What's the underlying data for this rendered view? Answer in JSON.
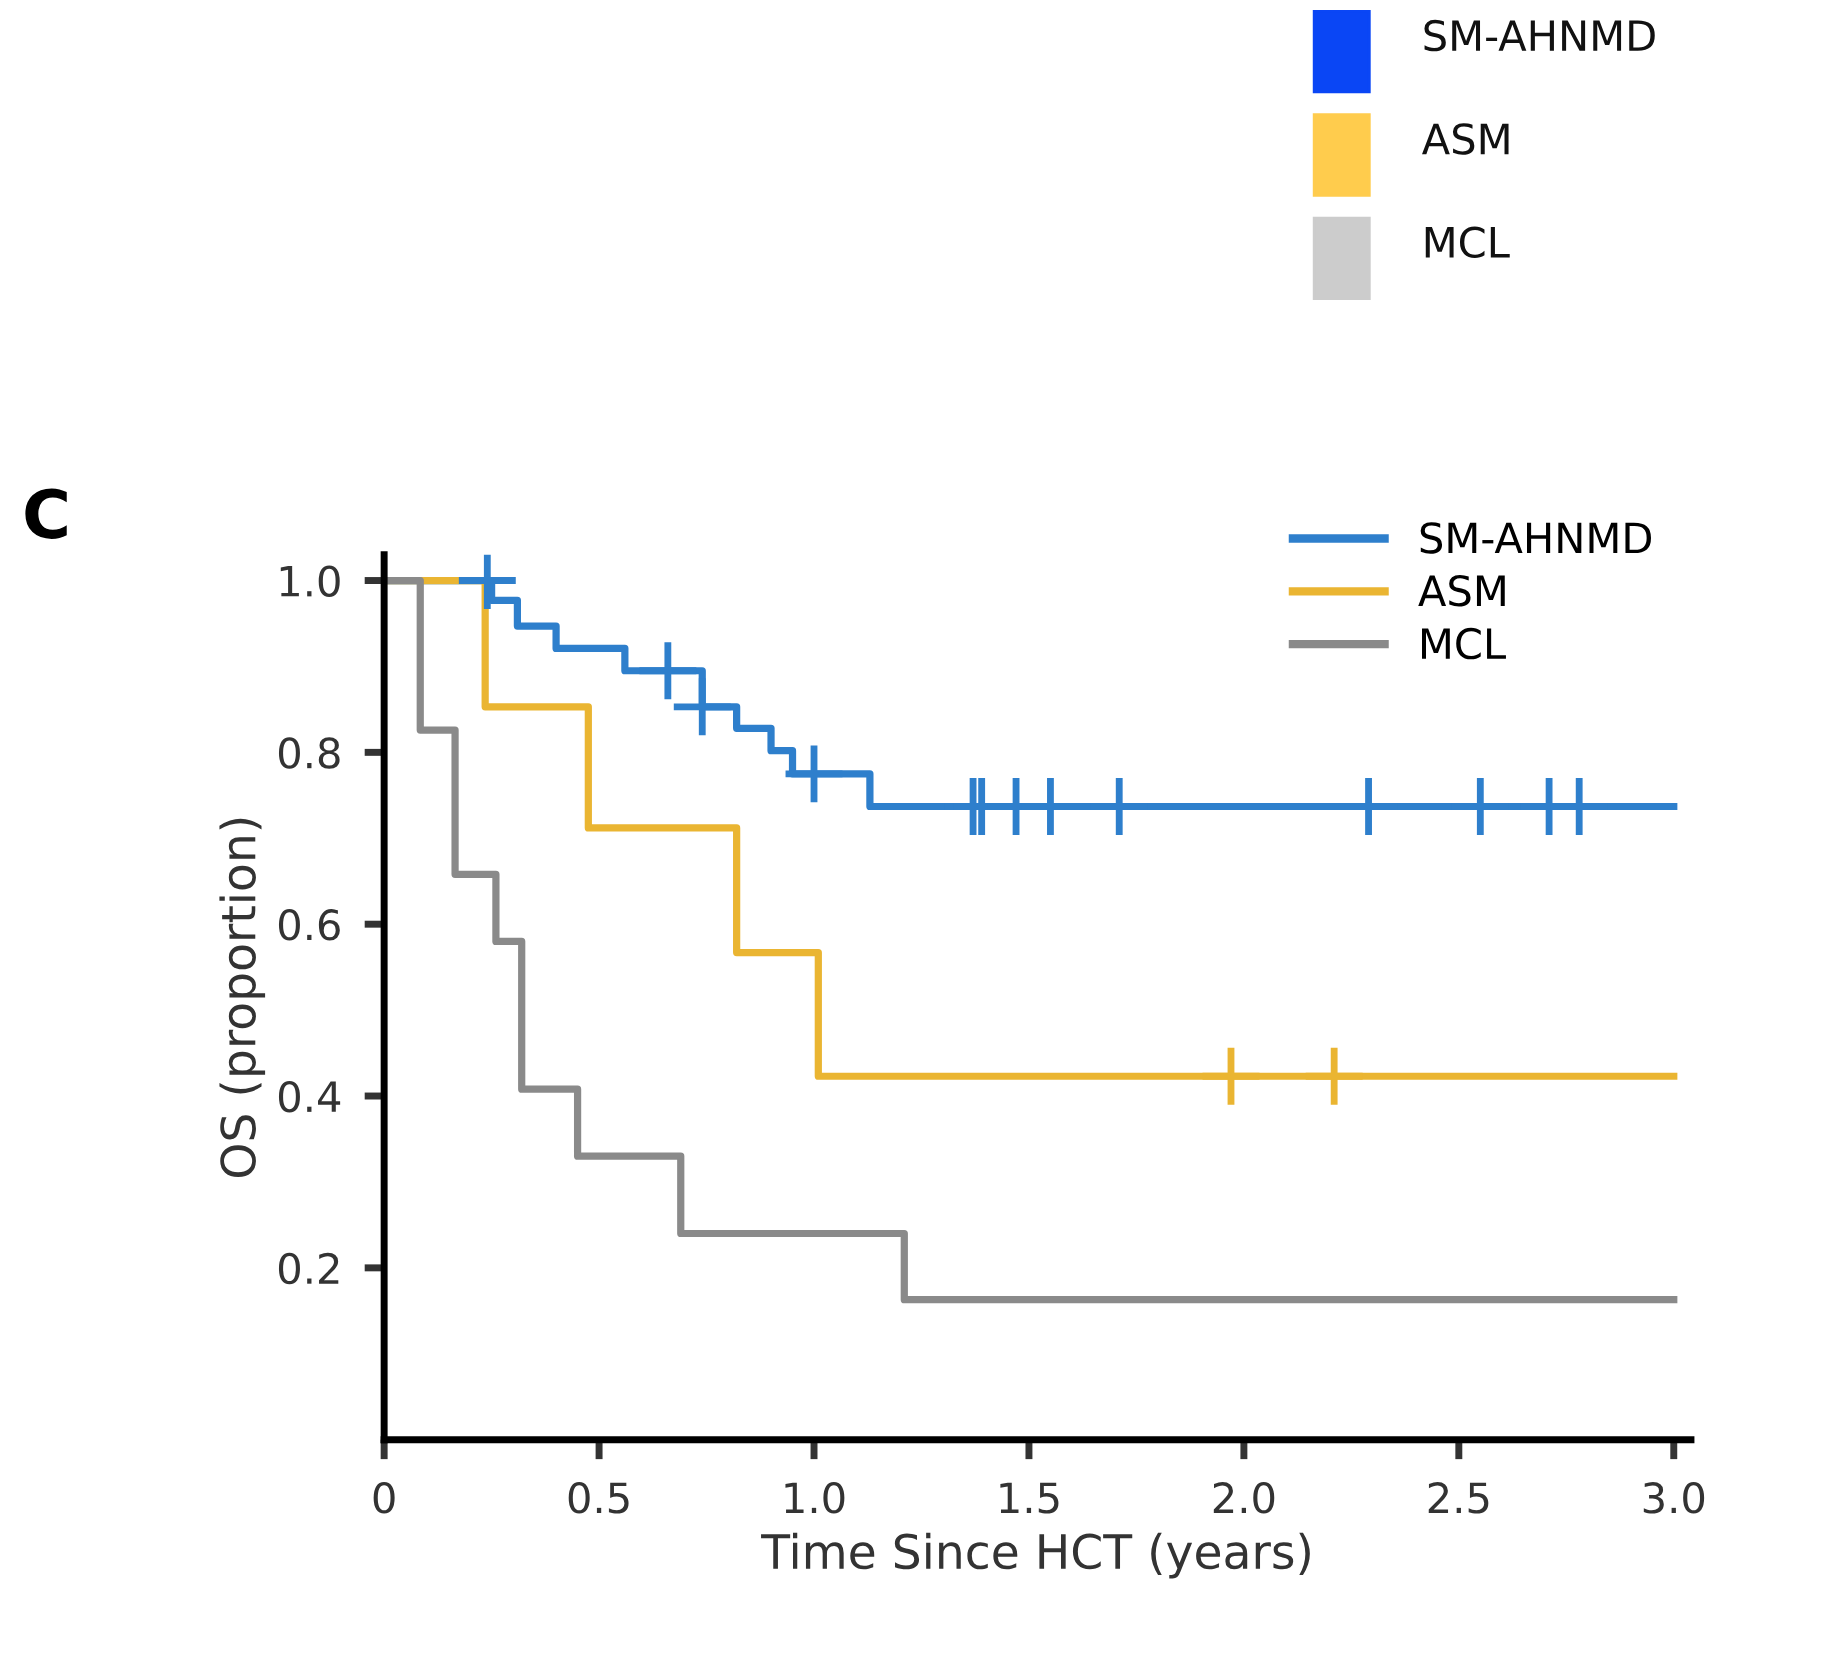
{
  "chart_data": [
    {
      "type": "other",
      "categories": [
        "SM-AHNMD",
        "ASM",
        "MCL"
      ],
      "colors": [
        "#0a46f5",
        "#ffcc4d",
        "#cccccc"
      ]
    },
    {
      "type": "step",
      "title": "C",
      "xlabel": "Time Since HCT (years)",
      "ylabel": "OS (proportion)",
      "xlim": [
        0,
        3.04
      ],
      "ylim": [
        0,
        1.03
      ],
      "xticks": [
        0,
        0.5,
        {
          "value": 1,
          "label": "1.0"
        },
        1.5,
        {
          "value": 2,
          "label": "2.0"
        },
        2.5,
        {
          "value": 3,
          "label": "3.0"
        }
      ],
      "yticks": [
        0.2,
        0.4,
        0.6,
        0.8,
        {
          "value": 1,
          "label": "1.0"
        }
      ],
      "legend": "top right",
      "grid": false,
      "series": [
        {
          "name": "SM-AHNMD",
          "color": "#2e7fcc",
          "x": [
            0,
            0.25,
            0.31,
            0.4,
            0.56,
            0.74,
            0.82,
            0.9,
            0.95,
            1.13,
            3.0
          ],
          "values": [
            1.0,
            0.977,
            0.947,
            0.921,
            0.895,
            0.853,
            0.828,
            0.802,
            0.775,
            0.737,
            0.737
          ]
        },
        {
          "name": "ASM",
          "color": "#eab532",
          "x": [
            0,
            0.235,
            0.475,
            0.82,
            1.01,
            3.0
          ],
          "values": [
            1.0,
            0.853,
            0.712,
            0.567,
            0.423,
            0.423
          ]
        },
        {
          "name": "MCL",
          "color": "#8a8a8a",
          "x": [
            0,
            0.084,
            0.165,
            0.26,
            0.32,
            0.45,
            0.69,
            1.21,
            3.0
          ],
          "values": [
            1.0,
            0.826,
            0.658,
            0.58,
            0.408,
            0.33,
            0.24,
            0.163,
            0.163
          ]
        },
        {
          "type": "scatter",
          "marker": "cross",
          "color": "#2e7fcc",
          "x": [
            0.24,
            0.66,
            0.74,
            1.0,
            1.37,
            1.39,
            1.47,
            1.55,
            1.71,
            2.29,
            2.55,
            2.71,
            2.78
          ],
          "values": [
            1.0,
            0.895,
            0.853,
            0.775,
            0.737,
            0.737,
            0.737,
            0.737,
            0.737,
            0.737,
            0.737,
            0.737,
            0.737
          ]
        },
        {
          "type": "scatter",
          "marker": "cross",
          "color": "#eab532",
          "x": [
            1.97,
            2.21
          ],
          "values": [
            0.423,
            0.423
          ]
        }
      ]
    }
  ]
}
